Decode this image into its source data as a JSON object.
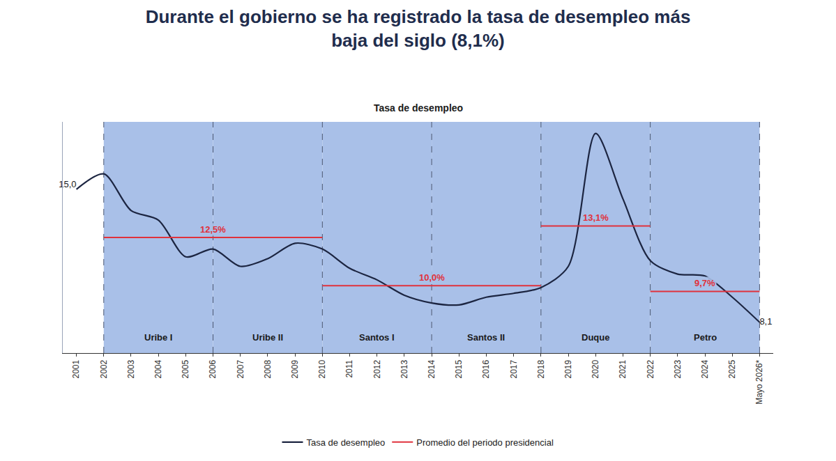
{
  "chart_data": {
    "type": "line",
    "title": "Durante el gobierno se ha registrado la tasa de desempleo más baja del siglo (8,1%)",
    "subtitle": "Tasa de desempleo",
    "categories": [
      "2001",
      "2002",
      "2003",
      "2004",
      "2005",
      "2006",
      "2007",
      "2008",
      "2009",
      "2010",
      "2011",
      "2012",
      "2013",
      "2014",
      "2015",
      "2016",
      "2017",
      "2018",
      "2019",
      "2020",
      "2021",
      "2022",
      "2023",
      "2024",
      "2025",
      "Mayo 2026*"
    ],
    "series": [
      {
        "name": "Tasa de desempleo",
        "color": "#1c2541",
        "values": [
          15.0,
          15.8,
          13.9,
          13.4,
          11.5,
          11.9,
          11.0,
          11.4,
          12.2,
          11.9,
          10.9,
          10.3,
          9.5,
          9.1,
          9.0,
          9.4,
          9.6,
          9.9,
          11.0,
          17.9,
          14.5,
          11.3,
          10.6,
          10.5,
          9.4,
          8.1
        ],
        "value_labels": [
          "15,0",
          null,
          null,
          null,
          null,
          null,
          null,
          null,
          null,
          null,
          null,
          null,
          null,
          null,
          null,
          null,
          null,
          null,
          null,
          null,
          null,
          null,
          null,
          null,
          null,
          "8,1"
        ]
      }
    ],
    "averages": {
      "name": "Promedio del periodo presidencial",
      "color": "#e0323c",
      "segments": [
        {
          "start": "2002",
          "end": "2010",
          "value": 12.5,
          "label": "12,5%"
        },
        {
          "start": "2010",
          "end": "2018",
          "value": 10.0,
          "label": "10,0%"
        },
        {
          "start": "2018",
          "end": "2022",
          "value": 13.1,
          "label": "13,1%"
        },
        {
          "start": "2022",
          "end": "Mayo 2026*",
          "value": 9.7,
          "label": "9,7%"
        }
      ]
    },
    "periods": [
      {
        "name": "Uribe I",
        "start": "2002",
        "end": "2006"
      },
      {
        "name": "Uribe II",
        "start": "2006",
        "end": "2010"
      },
      {
        "name": "Santos I",
        "start": "2010",
        "end": "2014"
      },
      {
        "name": "Santos II",
        "start": "2014",
        "end": "2018"
      },
      {
        "name": "Duque",
        "start": "2018",
        "end": "2022"
      },
      {
        "name": "Petro",
        "start": "2022",
        "end": "Mayo 2026*"
      }
    ],
    "ylim": [
      6.5,
      18.5
    ],
    "grid": false,
    "tick_labels": "x",
    "legend": "bottom"
  }
}
